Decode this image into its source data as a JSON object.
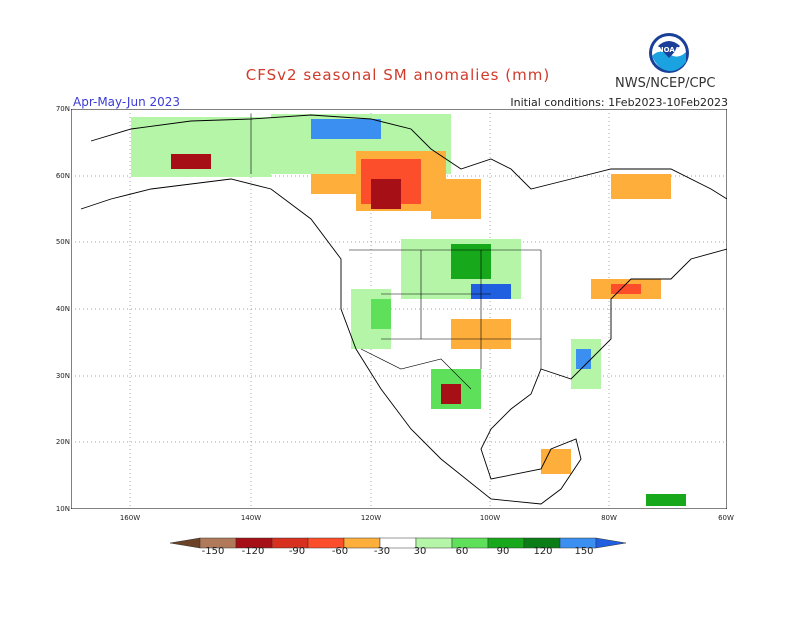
{
  "title": "CFSv2 seasonal SM anomalies (mm)",
  "period": "Apr-May-Jun 2023",
  "initial_conditions": "Initial conditions: 1Feb2023-10Feb2023",
  "agency": "NWS/NCEP/CPC",
  "logo_text": "NOAA",
  "lat_labels": [
    "70N",
    "60N",
    "50N",
    "40N",
    "30N",
    "20N",
    "10N"
  ],
  "lon_labels": [
    "160W",
    "140W",
    "120W",
    "100W",
    "80W",
    "60W"
  ],
  "legend": {
    "labels": [
      "-150",
      "-120",
      "-90",
      "-60",
      "-30",
      "30",
      "60",
      "90",
      "120",
      "150"
    ],
    "colors": [
      "#6b4226",
      "#b07a5a",
      "#a50f15",
      "#d7301f",
      "#fc4e2a",
      "#fdae3b",
      "#ffffff",
      "#b4f5a8",
      "#5fe05a",
      "#17a81c",
      "#0a7d16",
      "#3a8ff0",
      "#1f5fe0"
    ]
  }
}
